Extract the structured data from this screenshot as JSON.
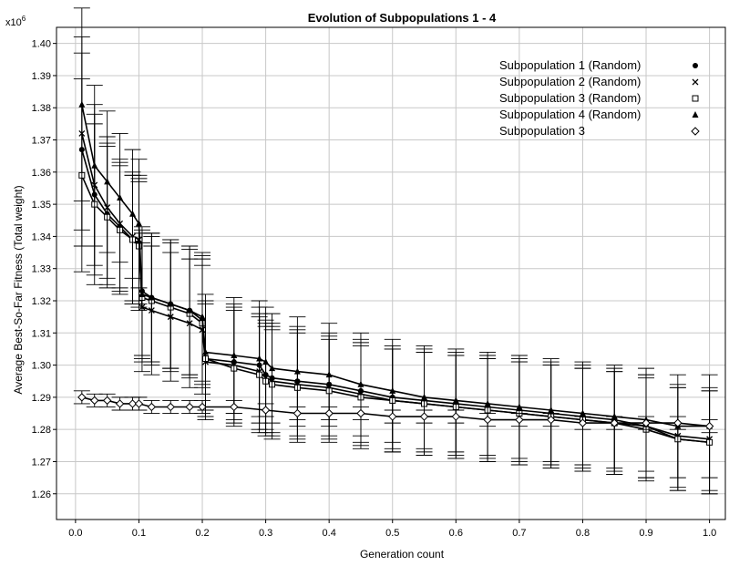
{
  "chart_data": {
    "type": "line",
    "title": "Evolution of Subpopulations 1 - 4",
    "xlabel": "Generation count",
    "ylabel": "Average Best-So-Far Fitness (Total weight)",
    "y_multiplier": "x10",
    "y_multiplier_exp": "6",
    "xlim": [
      -0.03,
      1.025
    ],
    "ylim": [
      1.252,
      1.405
    ],
    "x_ticks": [
      "0.0",
      "0.1",
      "0.2",
      "0.3",
      "0.4",
      "0.5",
      "0.6",
      "0.7",
      "0.8",
      "0.9",
      "1.0"
    ],
    "y_ticks": [
      "1.26",
      "1.27",
      "1.28",
      "1.29",
      "1.30",
      "1.31",
      "1.32",
      "1.33",
      "1.34",
      "1.35",
      "1.36",
      "1.37",
      "1.38",
      "1.39",
      "1.40"
    ],
    "grid": true,
    "legend_position": "top-right",
    "series": [
      {
        "name": "Subpopulation 1 (Random)",
        "marker": "filled-circle",
        "x": [
          0.01,
          0.03,
          0.05,
          0.07,
          0.09,
          0.1,
          0.105,
          0.12,
          0.15,
          0.18,
          0.2,
          0.205,
          0.25,
          0.29,
          0.3,
          0.31,
          0.35,
          0.4,
          0.45,
          0.5,
          0.55,
          0.6,
          0.65,
          0.7,
          0.75,
          0.8,
          0.85,
          0.9,
          0.95,
          1.0
        ],
        "y": [
          1.367,
          1.353,
          1.347,
          1.343,
          1.339,
          1.338,
          1.323,
          1.321,
          1.319,
          1.317,
          1.314,
          1.302,
          1.301,
          1.3,
          1.297,
          1.296,
          1.295,
          1.294,
          1.292,
          1.29,
          1.289,
          1.288,
          1.287,
          1.286,
          1.285,
          1.284,
          1.283,
          1.281,
          1.277,
          1.276
        ],
        "err": [
          0.03,
          0.025,
          0.022,
          0.02,
          0.02,
          0.02,
          0.02,
          0.02,
          0.02,
          0.02,
          0.02,
          0.018,
          0.018,
          0.018,
          0.017,
          0.017,
          0.017,
          0.016,
          0.016,
          0.016,
          0.016,
          0.016,
          0.016,
          0.016,
          0.016,
          0.016,
          0.016,
          0.016,
          0.016,
          0.016
        ]
      },
      {
        "name": "Subpopulation 2 (Random)",
        "marker": "cross",
        "x": [
          0.01,
          0.03,
          0.05,
          0.07,
          0.09,
          0.1,
          0.105,
          0.12,
          0.15,
          0.18,
          0.2,
          0.205,
          0.25,
          0.29,
          0.3,
          0.31,
          0.35,
          0.4,
          0.45,
          0.5,
          0.55,
          0.6,
          0.65,
          0.7,
          0.75,
          0.8,
          0.85,
          0.9,
          0.95,
          1.0
        ],
        "y": [
          1.372,
          1.356,
          1.349,
          1.344,
          1.34,
          1.339,
          1.318,
          1.317,
          1.315,
          1.313,
          1.311,
          1.301,
          1.3,
          1.298,
          1.296,
          1.295,
          1.294,
          1.293,
          1.291,
          1.289,
          1.288,
          1.287,
          1.286,
          1.285,
          1.284,
          1.283,
          1.282,
          1.281,
          1.278,
          1.277
        ],
        "err": [
          0.03,
          0.025,
          0.022,
          0.02,
          0.02,
          0.02,
          0.02,
          0.02,
          0.02,
          0.02,
          0.02,
          0.018,
          0.018,
          0.018,
          0.017,
          0.017,
          0.017,
          0.016,
          0.016,
          0.016,
          0.016,
          0.016,
          0.016,
          0.016,
          0.016,
          0.016,
          0.016,
          0.016,
          0.016,
          0.016
        ]
      },
      {
        "name": "Subpopulation 3 (Random)",
        "marker": "open-square",
        "x": [
          0.01,
          0.03,
          0.05,
          0.07,
          0.09,
          0.1,
          0.105,
          0.12,
          0.15,
          0.18,
          0.2,
          0.205,
          0.25,
          0.29,
          0.3,
          0.31,
          0.35,
          0.4,
          0.45,
          0.5,
          0.55,
          0.6,
          0.65,
          0.7,
          0.75,
          0.8,
          0.85,
          0.9,
          0.95,
          1.0
        ],
        "y": [
          1.359,
          1.35,
          1.346,
          1.342,
          1.339,
          1.337,
          1.321,
          1.32,
          1.318,
          1.316,
          1.313,
          1.302,
          1.299,
          1.297,
          1.295,
          1.294,
          1.293,
          1.292,
          1.29,
          1.289,
          1.288,
          1.287,
          1.286,
          1.285,
          1.284,
          1.283,
          1.282,
          1.28,
          1.277,
          1.276
        ],
        "err": [
          0.03,
          0.025,
          0.022,
          0.02,
          0.02,
          0.02,
          0.02,
          0.02,
          0.02,
          0.02,
          0.02,
          0.018,
          0.018,
          0.018,
          0.017,
          0.017,
          0.017,
          0.016,
          0.016,
          0.016,
          0.016,
          0.016,
          0.016,
          0.016,
          0.016,
          0.016,
          0.016,
          0.016,
          0.016,
          0.016
        ]
      },
      {
        "name": "Subpopulation 4 (Random)",
        "marker": "filled-triangle",
        "x": [
          0.01,
          0.03,
          0.05,
          0.07,
          0.09,
          0.1,
          0.105,
          0.12,
          0.15,
          0.18,
          0.2,
          0.205,
          0.25,
          0.29,
          0.3,
          0.31,
          0.35,
          0.4,
          0.45,
          0.5,
          0.55,
          0.6,
          0.65,
          0.7,
          0.75,
          0.8,
          0.85,
          0.9,
          0.95,
          1.0
        ],
        "y": [
          1.381,
          1.362,
          1.357,
          1.352,
          1.347,
          1.344,
          1.322,
          1.321,
          1.319,
          1.317,
          1.315,
          1.304,
          1.303,
          1.302,
          1.301,
          1.299,
          1.298,
          1.297,
          1.294,
          1.292,
          1.29,
          1.289,
          1.288,
          1.287,
          1.286,
          1.285,
          1.284,
          1.283,
          1.281,
          1.281
        ],
        "err": [
          0.03,
          0.025,
          0.022,
          0.02,
          0.02,
          0.02,
          0.02,
          0.02,
          0.02,
          0.02,
          0.02,
          0.018,
          0.018,
          0.018,
          0.017,
          0.017,
          0.017,
          0.016,
          0.016,
          0.016,
          0.016,
          0.016,
          0.016,
          0.016,
          0.016,
          0.016,
          0.016,
          0.016,
          0.016,
          0.016
        ]
      },
      {
        "name": "Subpopulation 3",
        "marker": "open-diamond",
        "x": [
          0.01,
          0.03,
          0.05,
          0.07,
          0.09,
          0.1,
          0.12,
          0.15,
          0.18,
          0.2,
          0.25,
          0.3,
          0.35,
          0.4,
          0.45,
          0.5,
          0.55,
          0.6,
          0.65,
          0.7,
          0.75,
          0.8,
          0.85,
          0.9,
          0.95,
          1.0
        ],
        "y": [
          1.29,
          1.289,
          1.289,
          1.288,
          1.288,
          1.288,
          1.287,
          1.287,
          1.287,
          1.287,
          1.287,
          1.286,
          1.285,
          1.285,
          1.285,
          1.284,
          1.284,
          1.284,
          1.283,
          1.283,
          1.283,
          1.282,
          1.282,
          1.282,
          1.282,
          1.281
        ],
        "err": [
          0.002,
          0.002,
          0.002,
          0.002,
          0.002,
          0.002,
          0.002,
          0.002,
          0.002,
          0.002,
          0.002,
          0.002,
          0.002,
          0.002,
          0.002,
          0.002,
          0.002,
          0.002,
          0.002,
          0.002,
          0.002,
          0.002,
          0.002,
          0.002,
          0.002,
          0.002
        ]
      }
    ]
  }
}
